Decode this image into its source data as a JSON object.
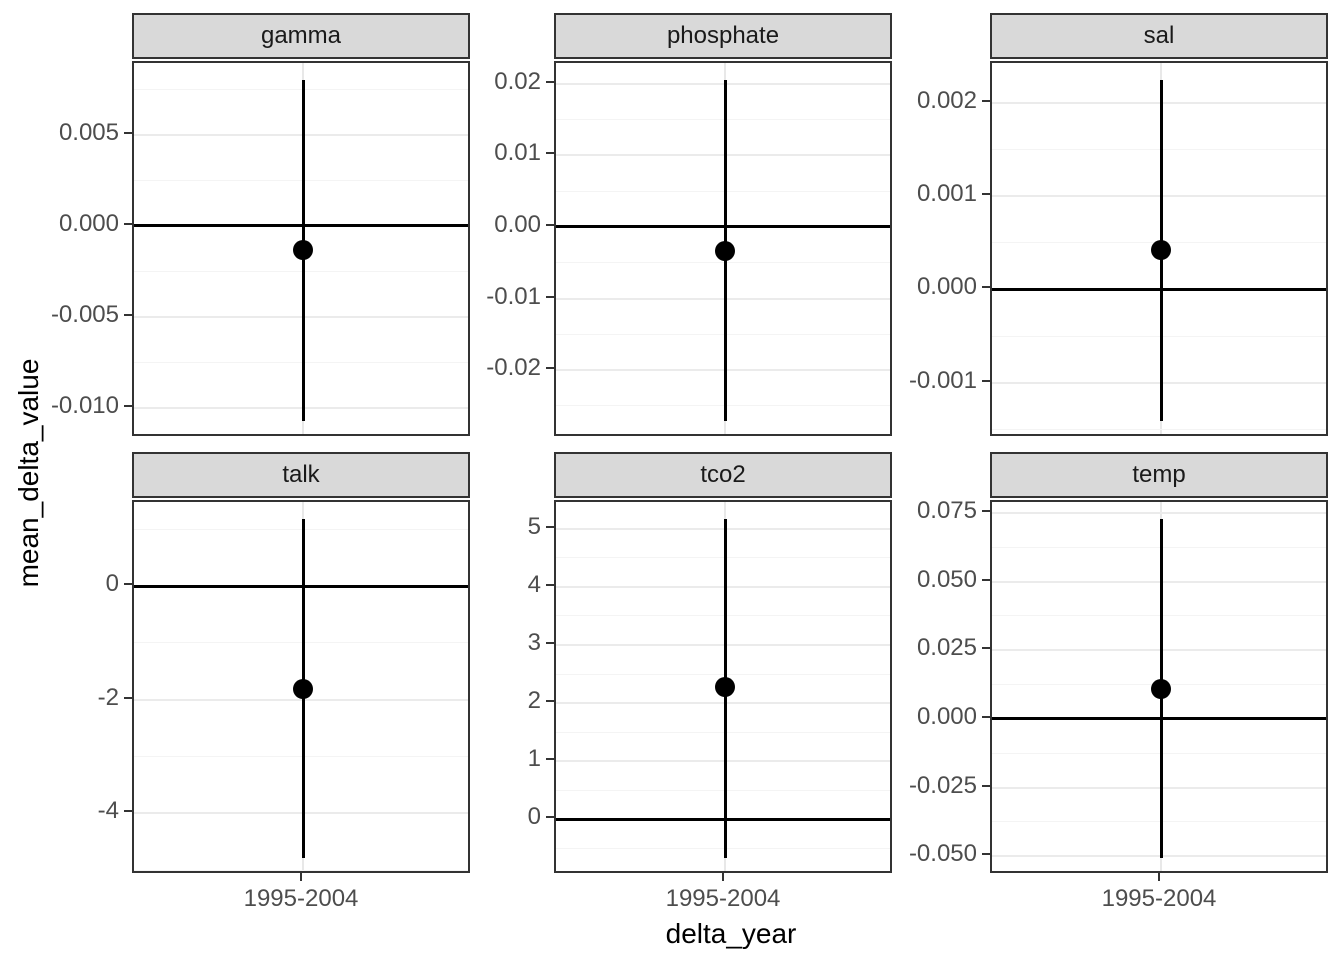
{
  "chart_data": {
    "type": "scatter",
    "subtype": "pointrange-facets",
    "title": "",
    "xlabel": "delta_year",
    "ylabel": "mean_delta_value",
    "x_categories": [
      "1995-2004"
    ],
    "x_tick_label": "1995-2004",
    "legend": "none",
    "grid": "on",
    "facets": [
      {
        "label": "gamma",
        "point": -0.0013,
        "ymin": -0.0107,
        "ymax": 0.008,
        "hline": 0,
        "ylim": [
          -0.011635,
          0.008935
        ],
        "yticks": [
          {
            "v": 0.005,
            "label": "0.005"
          },
          {
            "v": 0.0,
            "label": "0.000"
          },
          {
            "v": -0.005,
            "label": "-0.005"
          },
          {
            "v": -0.01,
            "label": "-0.010"
          }
        ],
        "yminor": [
          0.0075,
          0.0025,
          -0.0025,
          -0.0075
        ]
      },
      {
        "label": "phosphate",
        "point": -0.0034,
        "ymin": -0.0271,
        "ymax": 0.0205,
        "hline": 0,
        "ylim": [
          -0.02948,
          0.02288
        ],
        "yticks": [
          {
            "v": 0.02,
            "label": "0.02"
          },
          {
            "v": 0.01,
            "label": "0.01"
          },
          {
            "v": 0.0,
            "label": "0.00"
          },
          {
            "v": -0.01,
            "label": "-0.01"
          },
          {
            "v": -0.02,
            "label": "-0.02"
          }
        ],
        "yminor": [
          0.015,
          0.005,
          -0.005,
          -0.015,
          -0.025
        ]
      },
      {
        "label": "sal",
        "point": 0.00042,
        "ymin": -0.00141,
        "ymax": 0.00224,
        "hline": 0,
        "ylim": [
          -0.0015925,
          0.0024225
        ],
        "yticks": [
          {
            "v": 0.002,
            "label": "0.002"
          },
          {
            "v": 0.001,
            "label": "0.001"
          },
          {
            "v": 0.0,
            "label": "0.000"
          },
          {
            "v": -0.001,
            "label": "-0.001"
          }
        ],
        "yminor": [
          0.0015,
          0.0005,
          -0.0005,
          -0.0015
        ]
      },
      {
        "label": "talk",
        "point": -1.81,
        "ymin": -4.79,
        "ymax": 1.18,
        "hline": 0,
        "ylim": [
          -5.0885,
          1.4785
        ],
        "yticks": [
          {
            "v": 0,
            "label": "0"
          },
          {
            "v": -2,
            "label": "-2"
          },
          {
            "v": -4,
            "label": "-4"
          }
        ],
        "yminor": [
          1,
          -1,
          -3,
          -5
        ]
      },
      {
        "label": "tco2",
        "point": 2.27,
        "ymin": -0.67,
        "ymax": 5.17,
        "hline": 0,
        "ylim": [
          -0.962,
          5.462
        ],
        "yticks": [
          {
            "v": 5,
            "label": "5"
          },
          {
            "v": 4,
            "label": "4"
          },
          {
            "v": 3,
            "label": "3"
          },
          {
            "v": 2,
            "label": "2"
          },
          {
            "v": 1,
            "label": "1"
          },
          {
            "v": 0,
            "label": "0"
          }
        ],
        "yminor": [
          4.5,
          3.5,
          2.5,
          1.5,
          0.5,
          -0.5
        ]
      },
      {
        "label": "temp",
        "point": 0.011,
        "ymin": -0.0507,
        "ymax": 0.0728,
        "hline": 0,
        "ylim": [
          -0.056875,
          0.078975
        ],
        "yticks": [
          {
            "v": 0.075,
            "label": "0.075"
          },
          {
            "v": 0.05,
            "label": "0.050"
          },
          {
            "v": 0.025,
            "label": "0.025"
          },
          {
            "v": 0.0,
            "label": "0.000"
          },
          {
            "v": -0.025,
            "label": "-0.025"
          },
          {
            "v": -0.05,
            "label": "-0.050"
          }
        ],
        "yminor": [
          0.0625,
          0.0375,
          0.0125,
          -0.0125,
          -0.0375
        ]
      }
    ],
    "colors": {
      "strip_fill": "#d9d9d9",
      "panel_border": "#333333",
      "grid_major": "#ebebeb",
      "grid_minor": "#f4f4f4",
      "data_color": "#000000",
      "tick_text": "#4d4d4d",
      "strip_text": "#1a1a1a",
      "title_text": "#000000"
    }
  }
}
